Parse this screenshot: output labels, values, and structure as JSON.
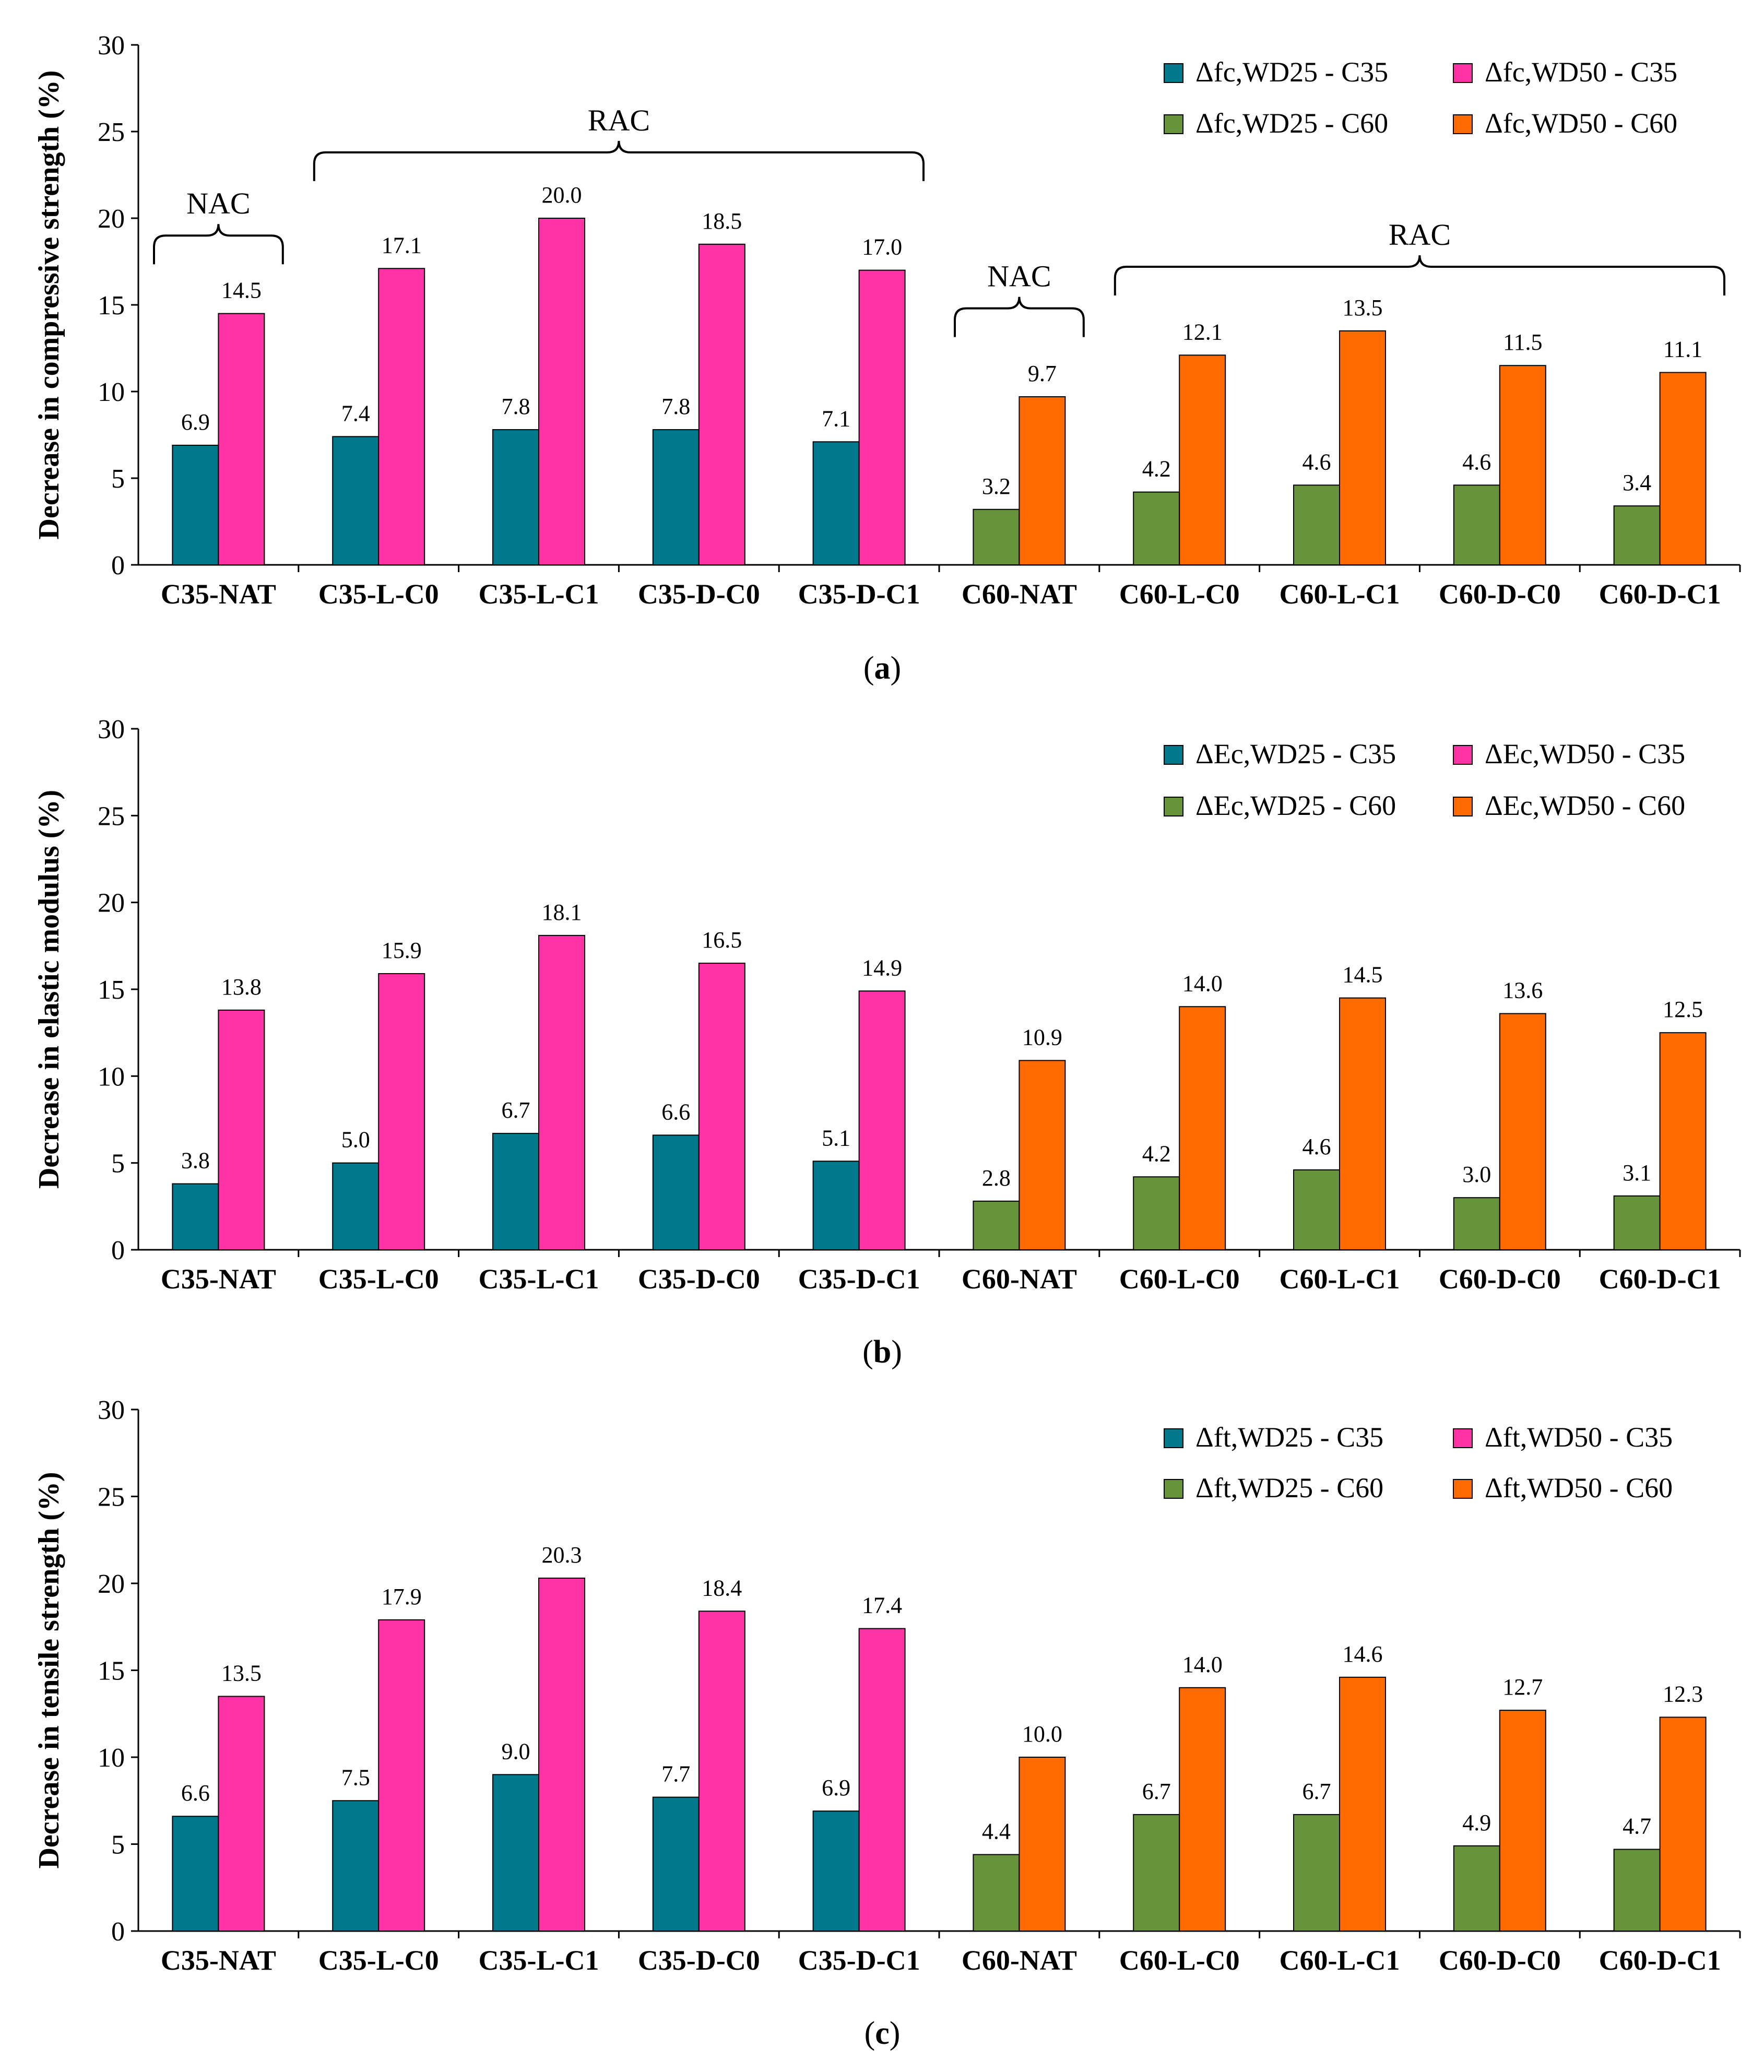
{
  "colors": {
    "wd25_c35": "#00798C",
    "wd50_c35": "#FF33A6",
    "wd25_c60": "#67933A",
    "wd50_c60": "#FF6B00",
    "axis": "#000000"
  },
  "chart_data": [
    {
      "id": "a",
      "type": "bar",
      "caption_letter": "a",
      "ylabel": "Decrease in compressive strength (%)",
      "ylim": [
        0,
        30
      ],
      "yticks": [
        "0",
        "5",
        "10",
        "15",
        "20",
        "25",
        "30"
      ],
      "categories": [
        "C35-NAT",
        "C35-L-C0",
        "C35-L-C1",
        "C35-D-C0",
        "C35-D-C1",
        "C60-NAT",
        "C60-L-C0",
        "C60-L-C1",
        "C60-D-C0",
        "C60-D-C1"
      ],
      "series": [
        {
          "name": "Δfc,WD25 - C35",
          "color_key": "wd25_c35",
          "values": [
            6.9,
            7.4,
            7.8,
            7.8,
            7.1,
            null,
            null,
            null,
            null,
            null
          ],
          "labels": [
            "6.9",
            "7.4",
            "7.8",
            "7.8",
            "7.1",
            "",
            "",
            "",
            "",
            ""
          ]
        },
        {
          "name": "Δfc,WD50 - C35",
          "color_key": "wd50_c35",
          "values": [
            14.5,
            17.1,
            20.0,
            18.5,
            17.0,
            null,
            null,
            null,
            null,
            null
          ],
          "labels": [
            "14.5",
            "17.1",
            "20.0",
            "18.5",
            "17.0",
            "",
            "",
            "",
            "",
            ""
          ]
        },
        {
          "name": "Δfc,WD25 - C60",
          "color_key": "wd25_c60",
          "values": [
            null,
            null,
            null,
            null,
            null,
            3.2,
            4.2,
            4.6,
            4.6,
            3.4
          ],
          "labels": [
            "",
            "",
            "",
            "",
            "",
            "3.2",
            "4.2",
            "4.6",
            "4.6",
            "3.4"
          ]
        },
        {
          "name": "Δfc,WD50 - C60",
          "color_key": "wd50_c60",
          "values": [
            null,
            null,
            null,
            null,
            null,
            9.7,
            12.1,
            13.5,
            11.5,
            11.1
          ],
          "labels": [
            "",
            "",
            "",
            "",
            "",
            "9.7",
            "12.1",
            "13.5",
            "11.5",
            "11.1"
          ]
        }
      ],
      "annotations": [
        {
          "text": "NAC",
          "from": 0,
          "to": 0,
          "level": 19.0
        },
        {
          "text": "RAC",
          "from": 1,
          "to": 4,
          "level": 23.8
        },
        {
          "text": "NAC",
          "from": 5,
          "to": 5,
          "level": 14.8
        },
        {
          "text": "RAC",
          "from": 6,
          "to": 9,
          "level": 17.2
        }
      ]
    },
    {
      "id": "b",
      "type": "bar",
      "caption_letter": "b",
      "ylabel": "Decrease in elastic modulus (%)",
      "ylim": [
        0,
        30
      ],
      "yticks": [
        "0",
        "5",
        "10",
        "15",
        "20",
        "25",
        "30"
      ],
      "categories": [
        "C35-NAT",
        "C35-L-C0",
        "C35-L-C1",
        "C35-D-C0",
        "C35-D-C1",
        "C60-NAT",
        "C60-L-C0",
        "C60-L-C1",
        "C60-D-C0",
        "C60-D-C1"
      ],
      "series": [
        {
          "name": "ΔEc,WD25 - C35",
          "color_key": "wd25_c35",
          "values": [
            3.8,
            5.0,
            6.7,
            6.6,
            5.1,
            null,
            null,
            null,
            null,
            null
          ],
          "labels": [
            "3.8",
            "5.0",
            "6.7",
            "6.6",
            "5.1",
            "",
            "",
            "",
            "",
            ""
          ]
        },
        {
          "name": "ΔEc,WD50 - C35",
          "color_key": "wd50_c35",
          "values": [
            13.8,
            15.9,
            18.1,
            16.5,
            14.9,
            null,
            null,
            null,
            null,
            null
          ],
          "labels": [
            "13.8",
            "15.9",
            "18.1",
            "16.5",
            "14.9",
            "",
            "",
            "",
            "",
            ""
          ]
        },
        {
          "name": "ΔEc,WD25 - C60",
          "color_key": "wd25_c60",
          "values": [
            null,
            null,
            null,
            null,
            null,
            2.8,
            4.2,
            4.6,
            3.0,
            3.1
          ],
          "labels": [
            "",
            "",
            "",
            "",
            "",
            "2.8",
            "4.2",
            "4.6",
            "3.0",
            "3.1"
          ]
        },
        {
          "name": "ΔEc,WD50 - C60",
          "color_key": "wd50_c60",
          "values": [
            null,
            null,
            null,
            null,
            null,
            10.9,
            14.0,
            14.5,
            13.6,
            12.5
          ],
          "labels": [
            "",
            "",
            "",
            "",
            "",
            "10.9",
            "14.0",
            "14.5",
            "13.6",
            "12.5"
          ]
        }
      ],
      "annotations": []
    },
    {
      "id": "c",
      "type": "bar",
      "caption_letter": "c",
      "ylabel": "Decrease in tensile strength (%)",
      "ylim": [
        0,
        30
      ],
      "yticks": [
        "0",
        "5",
        "10",
        "15",
        "20",
        "25",
        "30"
      ],
      "categories": [
        "C35-NAT",
        "C35-L-C0",
        "C35-L-C1",
        "C35-D-C0",
        "C35-D-C1",
        "C60-NAT",
        "C60-L-C0",
        "C60-L-C1",
        "C60-D-C0",
        "C60-D-C1"
      ],
      "series": [
        {
          "name": "Δft,WD25 - C35",
          "color_key": "wd25_c35",
          "values": [
            6.6,
            7.5,
            9.0,
            7.7,
            6.9,
            null,
            null,
            null,
            null,
            null
          ],
          "labels": [
            "6.6",
            "7.5",
            "9.0",
            "7.7",
            "6.9",
            "",
            "",
            "",
            "",
            ""
          ]
        },
        {
          "name": "Δft,WD50 - C35",
          "color_key": "wd50_c35",
          "values": [
            13.5,
            17.9,
            20.3,
            18.4,
            17.4,
            null,
            null,
            null,
            null,
            null
          ],
          "labels": [
            "13.5",
            "17.9",
            "20.3",
            "18.4",
            "17.4",
            "",
            "",
            "",
            "",
            ""
          ]
        },
        {
          "name": "Δft,WD25 - C60",
          "color_key": "wd25_c60",
          "values": [
            null,
            null,
            null,
            null,
            null,
            4.4,
            6.7,
            6.7,
            4.9,
            4.7
          ],
          "labels": [
            "",
            "",
            "",
            "",
            "",
            "4.4",
            "6.7",
            "6.7",
            "4.9",
            "4.7"
          ]
        },
        {
          "name": "Δft,WD50 - C60",
          "color_key": "wd50_c60",
          "values": [
            null,
            null,
            null,
            null,
            null,
            10.0,
            14.0,
            14.6,
            12.7,
            12.3
          ],
          "labels": [
            "",
            "",
            "",
            "",
            "",
            "10.0",
            "14.0",
            "14.6",
            "12.7",
            "12.3"
          ]
        }
      ],
      "annotations": []
    }
  ]
}
